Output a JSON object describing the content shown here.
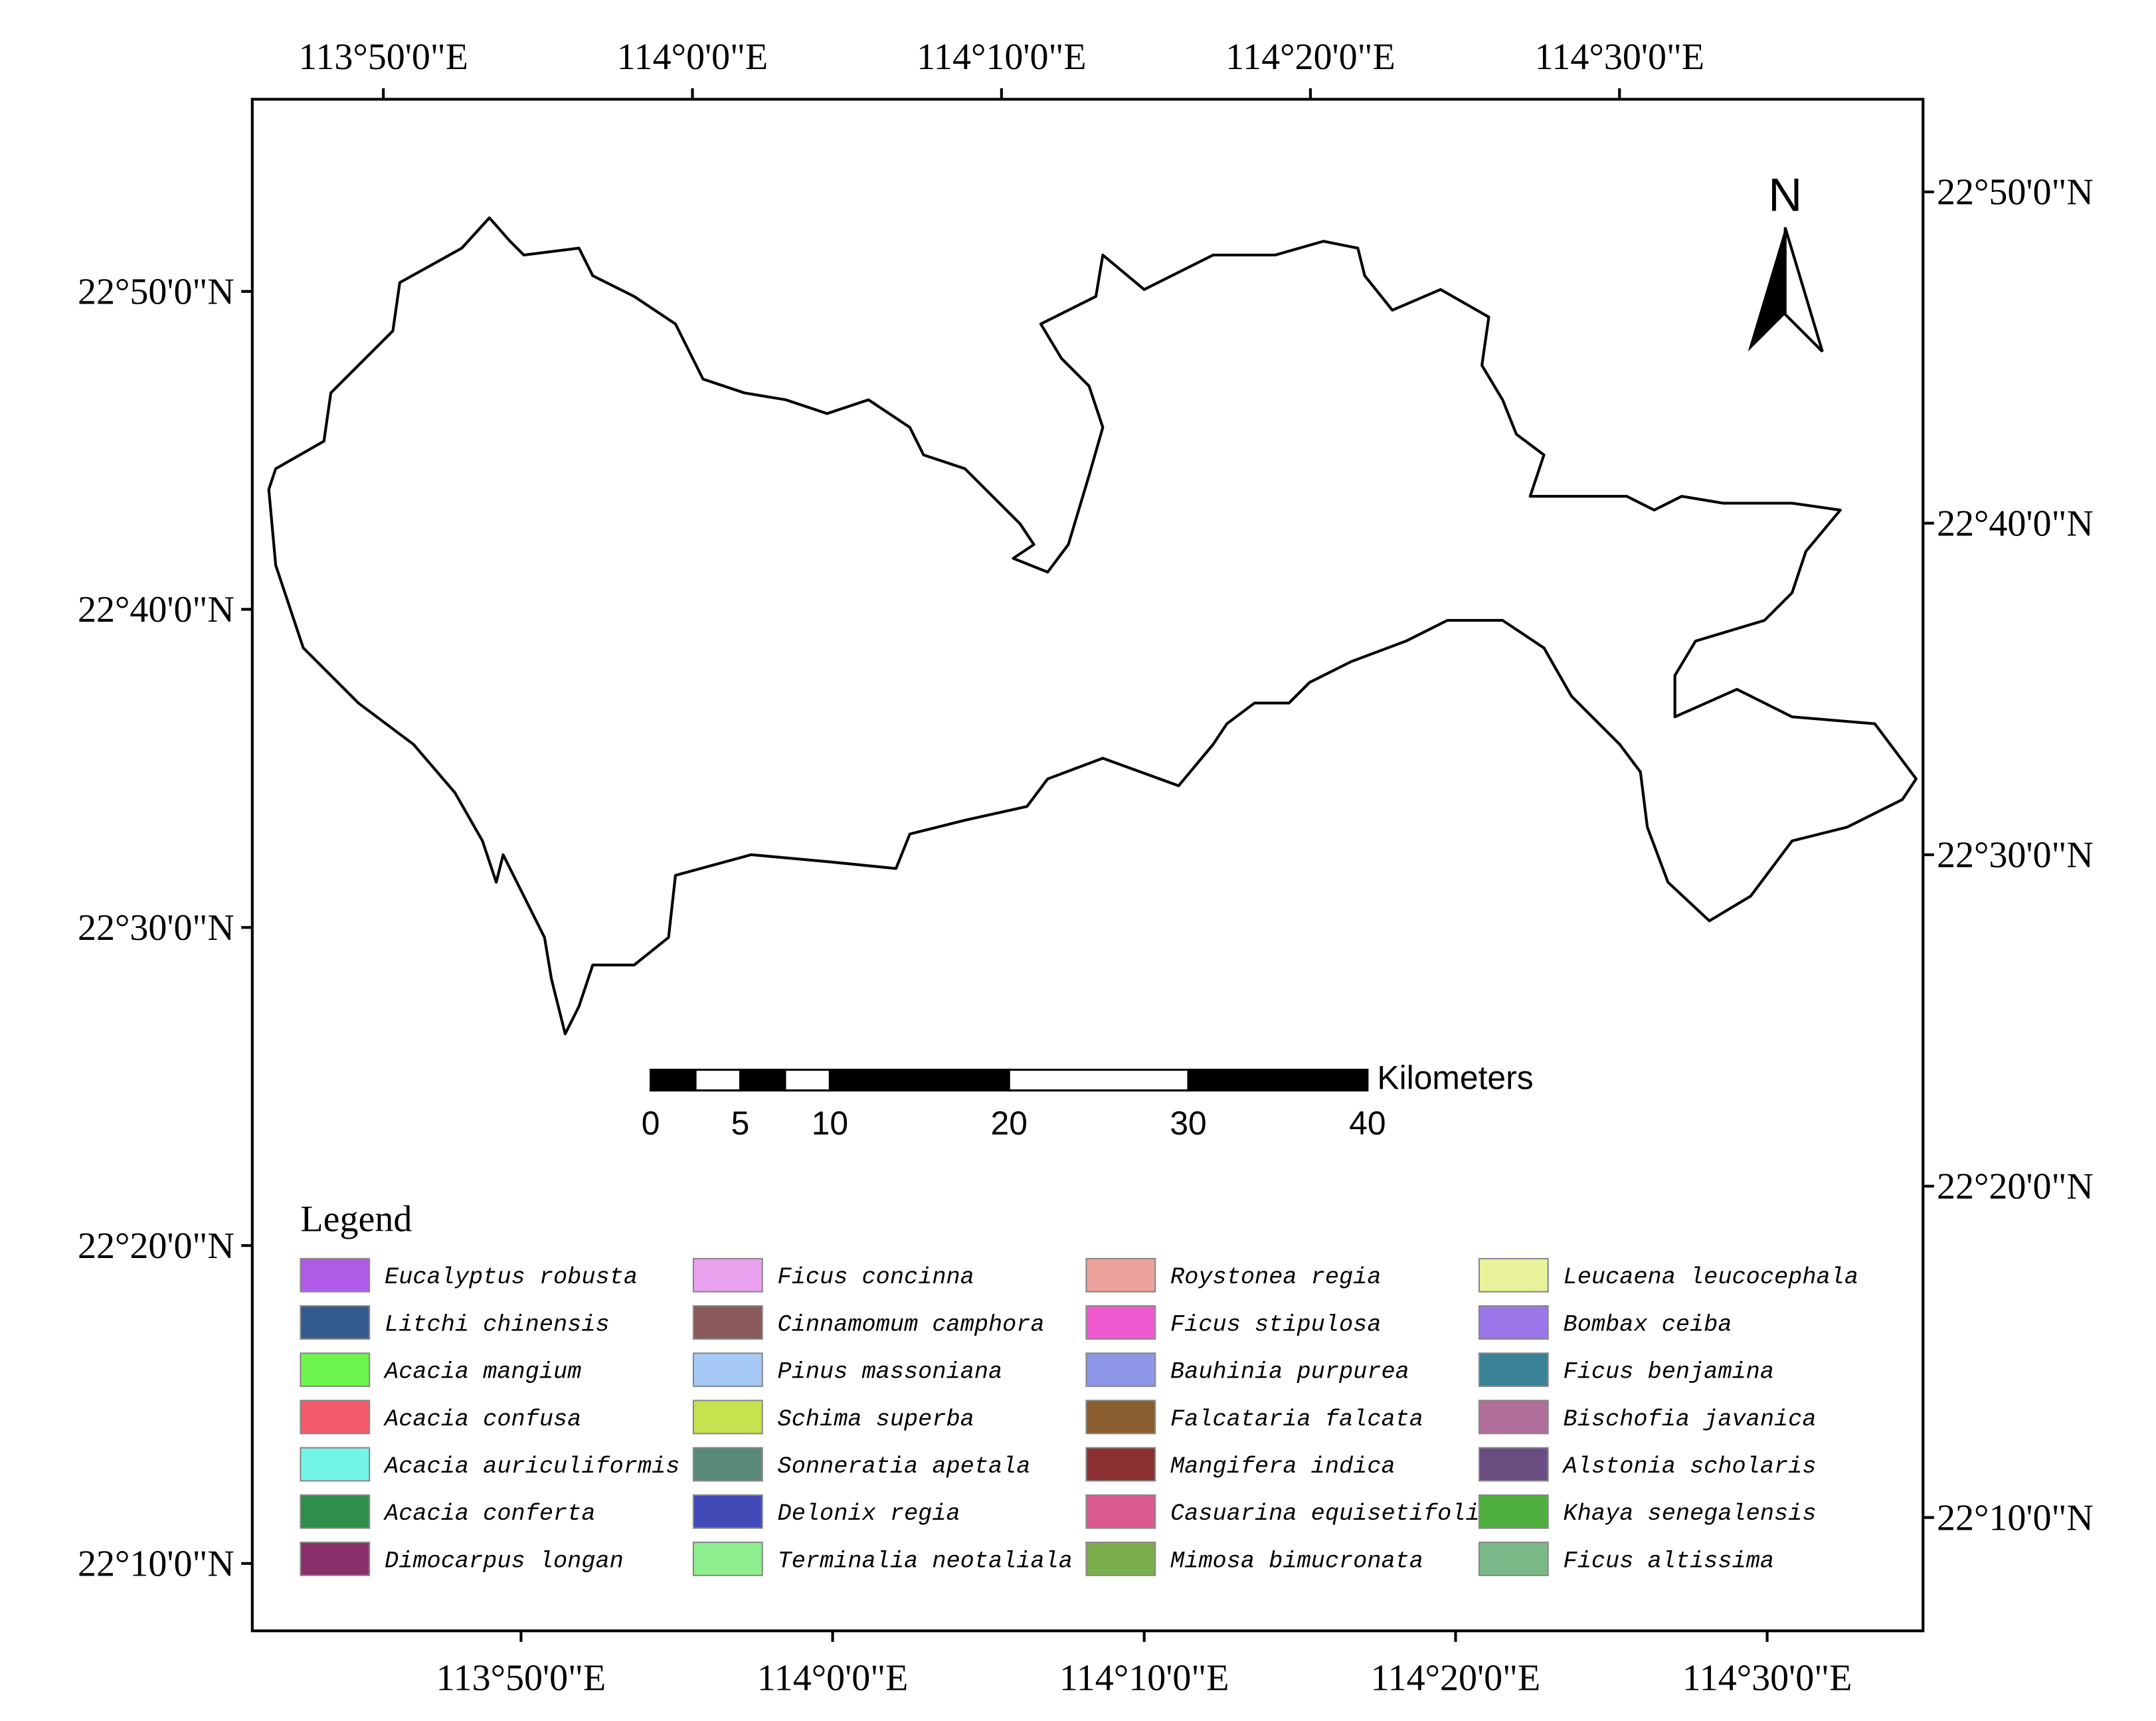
{
  "map": {
    "top_ticks": {
      "lim": [
        113.7626,
        114.6637
      ],
      "ticks": [
        {
          "value": 113.8333,
          "label": "113°50'0\"E"
        },
        {
          "value": 114.0,
          "label": "114°0'0\"E"
        },
        {
          "value": 114.1667,
          "label": "114°10'0\"E"
        },
        {
          "value": 114.3333,
          "label": "114°20'0\"E"
        },
        {
          "value": 114.5,
          "label": "114°30'0\"E"
        }
      ]
    },
    "bottom_ticks": {
      "lim": [
        113.6895,
        114.5834
      ],
      "ticks": [
        {
          "value": 113.8333,
          "label": "113°50'0\"E"
        },
        {
          "value": 114.0,
          "label": "114°0'0\"E"
        },
        {
          "value": 114.1667,
          "label": "114°10'0\"E"
        },
        {
          "value": 114.3333,
          "label": "114°20'0\"E"
        },
        {
          "value": 114.5,
          "label": "114°30'0\"E"
        }
      ]
    },
    "left_ticks": {
      "lim": [
        22.934,
        22.1314
      ],
      "ticks": [
        {
          "value": 22.8333,
          "label": "22°50'0\"N"
        },
        {
          "value": 22.6667,
          "label": "22°40'0\"N"
        },
        {
          "value": 22.5,
          "label": "22°30'0\"N"
        },
        {
          "value": 22.3333,
          "label": "22°20'0\"N"
        },
        {
          "value": 22.1667,
          "label": "22°10'0\"N"
        }
      ]
    },
    "right_ticks": {
      "lim": [
        22.8799,
        22.1097
      ],
      "ticks": [
        {
          "value": 22.8333,
          "label": "22°50'0\"N"
        },
        {
          "value": 22.6667,
          "label": "22°40'0\"N"
        },
        {
          "value": 22.5,
          "label": "22°30'0\"N"
        },
        {
          "value": 22.3333,
          "label": "22°20'0\"N"
        },
        {
          "value": 22.1667,
          "label": "22°10'0\"N"
        }
      ]
    },
    "north": "N",
    "scale_bar": {
      "unit": "Kilometers",
      "ticks": [
        0,
        5,
        10,
        20,
        30,
        40
      ]
    },
    "legend": {
      "title": "Legend",
      "items": [
        {
          "name": "Eucalyptus robusta",
          "color": "#b05ae8"
        },
        {
          "name": "Litchi chinensis",
          "color": "#335b8e"
        },
        {
          "name": "Acacia mangium",
          "color": "#6ef54e"
        },
        {
          "name": "Acacia confusa",
          "color": "#f25a6a"
        },
        {
          "name": "Acacia auriculiformis",
          "color": "#72f5e6"
        },
        {
          "name": "Acacia conferta",
          "color": "#2e8e4a"
        },
        {
          "name": "Dimocarpus longan",
          "color": "#8a2e6a"
        },
        {
          "name": "Ficus concinna",
          "color": "#eaa2ee"
        },
        {
          "name": "Cinnamomum camphora",
          "color": "#8a5a5a"
        },
        {
          "name": "Pinus massoniana",
          "color": "#a6c8f5"
        },
        {
          "name": "Schima superba",
          "color": "#c6e24e"
        },
        {
          "name": "Sonneratia apetala",
          "color": "#5a8a7a"
        },
        {
          "name": "Delonix regia",
          "color": "#424ab8"
        },
        {
          "name": "Terminalia neotaliala",
          "color": "#8ef08e"
        },
        {
          "name": "Roystonea regia",
          "color": "#eaa29a"
        },
        {
          "name": "Ficus stipulosa",
          "color": "#f05ad0"
        },
        {
          "name": "Bauhinia purpurea",
          "color": "#8e96e8"
        },
        {
          "name": "Falcataria falcata",
          "color": "#8a5e2e"
        },
        {
          "name": "Mangifera indica",
          "color": "#8a3030"
        },
        {
          "name": "Casuarina equisetifolia",
          "color": "#d85a8e"
        },
        {
          "name": "Mimosa bimucronata",
          "color": "#7aae4a"
        },
        {
          "name": "Leucaena leucocephala",
          "color": "#e8f29a"
        },
        {
          "name": "Bombax ceiba",
          "color": "#9a76e8"
        },
        {
          "name": "Ficus benjamina",
          "color": "#3a8296"
        },
        {
          "name": "Bischofia javanica",
          "color": "#b06e9a"
        },
        {
          "name": "Alstonia scholaris",
          "color": "#6a4e82"
        },
        {
          "name": "Khaya senegalensis",
          "color": "#4eae3e"
        },
        {
          "name": "Ficus altissima",
          "color": "#7ab888"
        }
      ]
    }
  }
}
